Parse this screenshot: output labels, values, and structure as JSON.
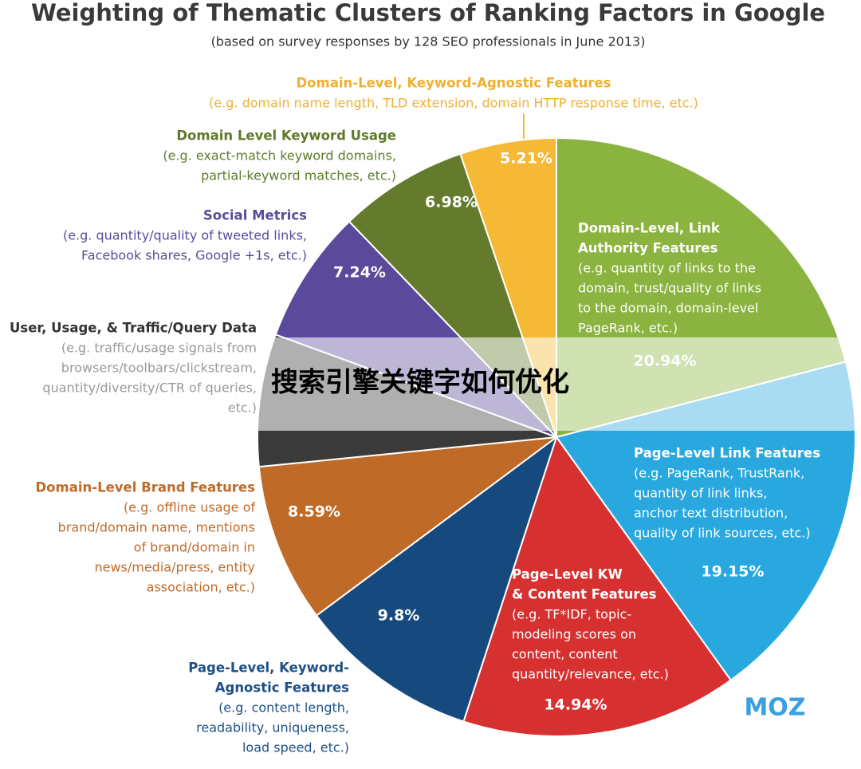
{
  "chart_data": {
    "type": "pie",
    "title": "Weighting of Thematic Clusters of Ranking Factors in Google",
    "subtitle": "(based on survey responses by 128 SEO professionals in June 2013)",
    "categories": [
      [
        "Domain-Level, Link",
        "Authority Features"
      ],
      [
        "Page-Level Link Features"
      ],
      [
        "Page-Level KW",
        "& Content Features"
      ],
      [
        "Page-Level, Keyword-",
        "Agnostic Features"
      ],
      [
        "Domain-Level Brand Features"
      ],
      [
        "User, Usage, & Traffic/Query Data"
      ],
      [
        "Social Metrics"
      ],
      [
        "Domain Level Keyword Usage"
      ],
      [
        "Domain-Level, Keyword-Agnostic Features"
      ]
    ],
    "descriptions": [
      [
        "(e.g. quantity of links to the",
        "domain, trust/quality of links",
        "to the domain, domain-level",
        "PageRank, etc.)"
      ],
      [
        "(e.g. PageRank, TrustRank,",
        "quantity of link links,",
        "anchor text distribution,",
        "quality of link sources, etc.)"
      ],
      [
        "(e.g. TF*IDF, topic-",
        "modeling scores on",
        "content, content",
        "quantity/relevance, etc.)"
      ],
      [
        "(e.g. content length,",
        "readability, uniqueness,",
        "load speed, etc.)"
      ],
      [
        "(e.g. offline usage of",
        "brand/domain name, mentions",
        "of brand/domain in",
        "news/media/press, entity",
        "association, etc.)"
      ],
      [
        "(e.g. traffic/usage signals from",
        "browsers/toolbars/clickstream,",
        "quantity/diversity/CTR of queries,",
        "etc.)"
      ],
      [
        "(e.g. quantity/quality of tweeted links,",
        "Facebook shares, Google +1s, etc.)"
      ],
      [
        "(e.g. exact-match keyword domains,",
        "partial-keyword matches, etc.)"
      ],
      [
        "(e.g. domain name length, TLD extension, domain HTTP response time, etc.)"
      ]
    ],
    "values": [
      20.94,
      19.15,
      14.94,
      9.8,
      8.59,
      7.15,
      7.24,
      6.98,
      5.21
    ],
    "value_labels": [
      "20.94%",
      "19.15%",
      "14.94%",
      "9.8%",
      "8.59%",
      null,
      "7.24%",
      "6.98%",
      "5.21%"
    ],
    "colors": [
      "#8ab33f",
      "#29a8e0",
      "#d63030",
      "#164a7e",
      "#c06a28",
      "#3a3a3a",
      "#5b4a9b",
      "#647a2c",
      "#f5b935"
    ],
    "logo": "MOZ",
    "watermark": "搜索引擎关键字如何优化"
  }
}
